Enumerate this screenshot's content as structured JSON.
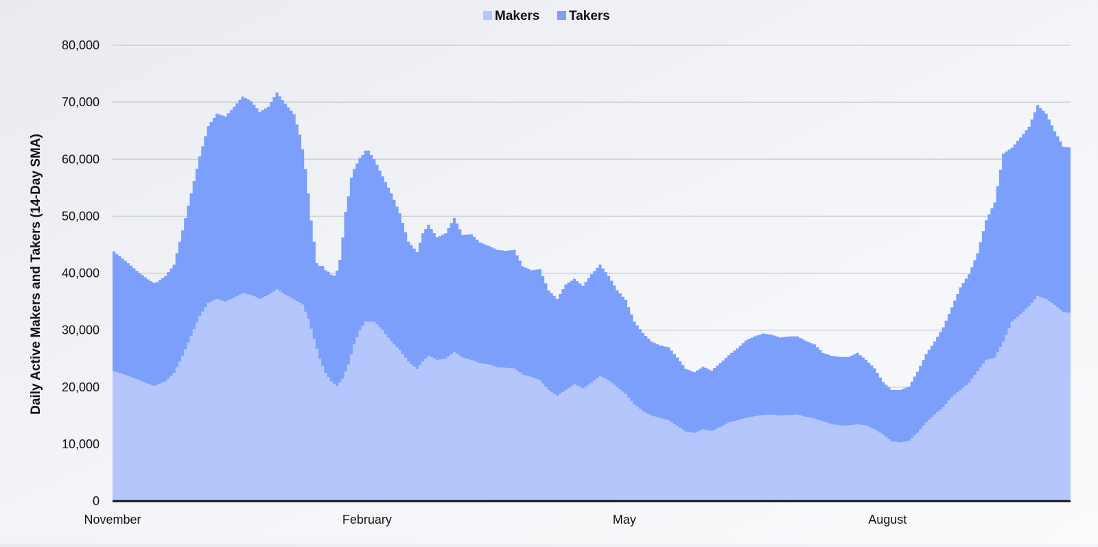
{
  "chart_data": {
    "type": "area",
    "stacked": true,
    "legend": {
      "placement": "top-center"
    },
    "ylabel": "Daily Active Makers and Takers (14-Day SMA)",
    "xlabel": "",
    "ylim": [
      0,
      80000
    ],
    "y_ticks": [
      0,
      10000,
      20000,
      30000,
      40000,
      50000,
      60000,
      70000,
      80000
    ],
    "y_tick_labels": [
      "0",
      "10,000",
      "20,000",
      "30,000",
      "40,000",
      "50,000",
      "60,000",
      "70,000",
      "80,000"
    ],
    "grid": true,
    "x_tick_labels": [
      "November",
      "February",
      "May",
      "August"
    ],
    "x_tick_index": [
      0,
      89,
      179,
      271
    ],
    "series": [
      {
        "name": "Makers",
        "color": "#b4c6fb",
        "values": [
          [
            0,
            22800
          ],
          [
            5,
            22000
          ],
          [
            10,
            21000
          ],
          [
            14,
            20200
          ],
          [
            18,
            21000
          ],
          [
            21,
            22500
          ],
          [
            24,
            25500
          ],
          [
            27,
            29000
          ],
          [
            30,
            32500
          ],
          [
            33,
            34800
          ],
          [
            36,
            35500
          ],
          [
            39,
            35000
          ],
          [
            42,
            35700
          ],
          [
            45,
            36500
          ],
          [
            48,
            36200
          ],
          [
            51,
            35500
          ],
          [
            54,
            36200
          ],
          [
            57,
            37200
          ],
          [
            60,
            36200
          ],
          [
            63,
            35400
          ],
          [
            66,
            34500
          ],
          [
            68,
            32000
          ],
          [
            70,
            28500
          ],
          [
            72,
            25000
          ],
          [
            74,
            22500
          ],
          [
            76,
            21000
          ],
          [
            78,
            20200
          ],
          [
            80,
            21500
          ],
          [
            82,
            24000
          ],
          [
            84,
            27500
          ],
          [
            86,
            30000
          ],
          [
            88,
            31500
          ],
          [
            91,
            31500
          ],
          [
            94,
            30000
          ],
          [
            97,
            28000
          ],
          [
            100,
            26500
          ],
          [
            103,
            24500
          ],
          [
            106,
            23200
          ],
          [
            108,
            24500
          ],
          [
            110,
            25500
          ],
          [
            113,
            24800
          ],
          [
            116,
            25000
          ],
          [
            119,
            26200
          ],
          [
            122,
            25200
          ],
          [
            125,
            24800
          ],
          [
            128,
            24200
          ],
          [
            131,
            24000
          ],
          [
            134,
            23500
          ],
          [
            137,
            23400
          ],
          [
            140,
            23300
          ],
          [
            143,
            22200
          ],
          [
            146,
            21800
          ],
          [
            149,
            21200
          ],
          [
            152,
            19500
          ],
          [
            155,
            18500
          ],
          [
            158,
            19500
          ],
          [
            161,
            20500
          ],
          [
            164,
            19800
          ],
          [
            167,
            20800
          ],
          [
            170,
            22000
          ],
          [
            173,
            21200
          ],
          [
            176,
            20000
          ],
          [
            179,
            18800
          ],
          [
            182,
            17000
          ],
          [
            185,
            15800
          ],
          [
            188,
            15000
          ],
          [
            191,
            14600
          ],
          [
            194,
            14200
          ],
          [
            197,
            13200
          ],
          [
            200,
            12200
          ],
          [
            203,
            12000
          ],
          [
            206,
            12600
          ],
          [
            209,
            12300
          ],
          [
            212,
            13000
          ],
          [
            215,
            13800
          ],
          [
            218,
            14200
          ],
          [
            221,
            14600
          ],
          [
            224,
            14900
          ],
          [
            227,
            15100
          ],
          [
            230,
            15200
          ],
          [
            233,
            15000
          ],
          [
            236,
            15100
          ],
          [
            239,
            15200
          ],
          [
            242,
            14800
          ],
          [
            245,
            14500
          ],
          [
            248,
            14000
          ],
          [
            251,
            13500
          ],
          [
            254,
            13300
          ],
          [
            257,
            13300
          ],
          [
            260,
            13500
          ],
          [
            263,
            13300
          ],
          [
            266,
            12600
          ],
          [
            269,
            11700
          ],
          [
            272,
            10500
          ],
          [
            275,
            10300
          ],
          [
            278,
            10600
          ],
          [
            281,
            12000
          ],
          [
            284,
            13800
          ],
          [
            287,
            15200
          ],
          [
            290,
            16500
          ],
          [
            293,
            18300
          ],
          [
            296,
            19500
          ],
          [
            299,
            20800
          ],
          [
            302,
            22800
          ],
          [
            305,
            24800
          ],
          [
            308,
            25200
          ],
          [
            311,
            28000
          ],
          [
            314,
            31500
          ],
          [
            317,
            32800
          ],
          [
            320,
            34200
          ],
          [
            323,
            36000
          ],
          [
            326,
            35500
          ],
          [
            329,
            34400
          ],
          [
            332,
            33200
          ],
          [
            335,
            33000
          ]
        ]
      },
      {
        "name": "Takers",
        "color": "#7b9ffa",
        "values": [
          [
            0,
            21000
          ],
          [
            4,
            20000
          ],
          [
            8,
            19000
          ],
          [
            12,
            18300
          ],
          [
            15,
            18000
          ],
          [
            18,
            18500
          ],
          [
            21,
            19000
          ],
          [
            24,
            22000
          ],
          [
            27,
            25000
          ],
          [
            30,
            28000
          ],
          [
            33,
            31000
          ],
          [
            36,
            32500
          ],
          [
            39,
            32500
          ],
          [
            42,
            33500
          ],
          [
            45,
            34500
          ],
          [
            48,
            34000
          ],
          [
            51,
            32800
          ],
          [
            54,
            33000
          ],
          [
            57,
            34500
          ],
          [
            60,
            33500
          ],
          [
            63,
            32500
          ],
          [
            65,
            29500
          ],
          [
            67,
            25000
          ],
          [
            69,
            19000
          ],
          [
            71,
            15000
          ],
          [
            73,
            17500
          ],
          [
            75,
            18500
          ],
          [
            77,
            19000
          ],
          [
            79,
            21500
          ],
          [
            81,
            28000
          ],
          [
            83,
            31000
          ],
          [
            85,
            30500
          ],
          [
            87,
            30000
          ],
          [
            89,
            30000
          ],
          [
            91,
            28500
          ],
          [
            94,
            27000
          ],
          [
            97,
            26000
          ],
          [
            100,
            24000
          ],
          [
            103,
            21000
          ],
          [
            106,
            20500
          ],
          [
            108,
            22500
          ],
          [
            110,
            23000
          ],
          [
            113,
            21500
          ],
          [
            116,
            22000
          ],
          [
            119,
            23500
          ],
          [
            122,
            21500
          ],
          [
            125,
            22000
          ],
          [
            128,
            21200
          ],
          [
            131,
            20800
          ],
          [
            134,
            20600
          ],
          [
            137,
            20500
          ],
          [
            140,
            20800
          ],
          [
            143,
            19000
          ],
          [
            146,
            18700
          ],
          [
            149,
            19500
          ],
          [
            152,
            17500
          ],
          [
            155,
            17000
          ],
          [
            158,
            18500
          ],
          [
            161,
            18500
          ],
          [
            164,
            18000
          ],
          [
            167,
            19000
          ],
          [
            170,
            19500
          ],
          [
            173,
            18300
          ],
          [
            176,
            17000
          ],
          [
            179,
            16500
          ],
          [
            182,
            14500
          ],
          [
            185,
            13700
          ],
          [
            188,
            13000
          ],
          [
            191,
            12700
          ],
          [
            194,
            12800
          ],
          [
            197,
            12000
          ],
          [
            200,
            11000
          ],
          [
            203,
            10600
          ],
          [
            206,
            11000
          ],
          [
            209,
            10600
          ],
          [
            212,
            11200
          ],
          [
            215,
            11800
          ],
          [
            218,
            12600
          ],
          [
            221,
            13600
          ],
          [
            224,
            14000
          ],
          [
            227,
            14300
          ],
          [
            230,
            14000
          ],
          [
            233,
            13700
          ],
          [
            236,
            13800
          ],
          [
            239,
            13700
          ],
          [
            242,
            13300
          ],
          [
            245,
            13000
          ],
          [
            248,
            12000
          ],
          [
            251,
            12000
          ],
          [
            254,
            12000
          ],
          [
            257,
            12000
          ],
          [
            260,
            12500
          ],
          [
            263,
            11500
          ],
          [
            266,
            10700
          ],
          [
            269,
            9200
          ],
          [
            272,
            9000
          ],
          [
            275,
            9200
          ],
          [
            278,
            9500
          ],
          [
            281,
            10700
          ],
          [
            284,
            12000
          ],
          [
            287,
            12800
          ],
          [
            290,
            14000
          ],
          [
            293,
            15700
          ],
          [
            296,
            18000
          ],
          [
            299,
            19000
          ],
          [
            302,
            20700
          ],
          [
            305,
            24500
          ],
          [
            308,
            27200
          ],
          [
            311,
            33000
          ],
          [
            314,
            30500
          ],
          [
            317,
            31000
          ],
          [
            320,
            31500
          ],
          [
            323,
            33500
          ],
          [
            326,
            32500
          ],
          [
            329,
            30500
          ],
          [
            332,
            29000
          ],
          [
            335,
            29000
          ]
        ]
      }
    ]
  }
}
